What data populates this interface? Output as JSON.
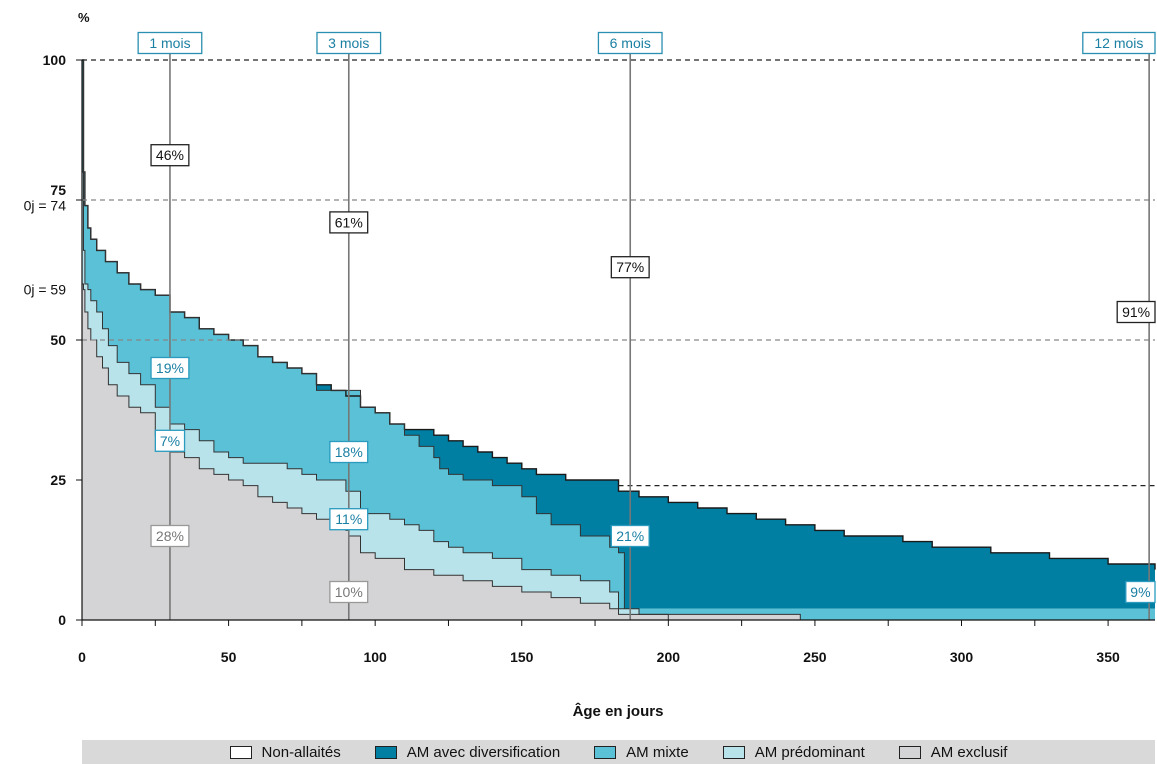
{
  "chart_data": {
    "type": "area",
    "xlabel": "Âge en jours",
    "ylabel": "%",
    "xlim": [
      0,
      366
    ],
    "ylim": [
      0,
      100
    ],
    "x_ticks": [
      "0",
      "50",
      "100",
      "150",
      "200",
      "250",
      "300",
      "350"
    ],
    "y_ticks": [
      "0",
      "25",
      "50",
      "75",
      "100"
    ],
    "reference_lines": [
      {
        "y": 100,
        "style": "dashed",
        "color": "#222222"
      },
      {
        "y": 75,
        "style": "dashed",
        "color": "#888888"
      },
      {
        "y": 50,
        "style": "dashed",
        "color": "#888888"
      },
      {
        "y": 24,
        "x_from": 183,
        "style": "dashed",
        "color": "#222222"
      }
    ],
    "start_labels": [
      {
        "text": "0j = 74",
        "y": 74
      },
      {
        "text": "0j = 59",
        "y": 59
      }
    ],
    "milestones": [
      {
        "label": "1 mois",
        "x": 30
      },
      {
        "label": "3 mois",
        "x": 91
      },
      {
        "label": "6 mois",
        "x": 187
      },
      {
        "label": "12 mois",
        "x": 364
      }
    ],
    "annotations": [
      {
        "text": "46%",
        "x": 30,
        "y": 83,
        "kind": "dark"
      },
      {
        "text": "61%",
        "x": 91,
        "y": 71,
        "kind": "dark"
      },
      {
        "text": "77%",
        "x": 187,
        "y": 63,
        "kind": "dark"
      },
      {
        "text": "91%",
        "x": 364,
        "y": 55,
        "kind": "dark"
      },
      {
        "text": "19%",
        "x": 30,
        "y": 45,
        "kind": "teal"
      },
      {
        "text": "7%",
        "x": 30,
        "y": 32,
        "kind": "teal"
      },
      {
        "text": "28%",
        "x": 30,
        "y": 15,
        "kind": "grey"
      },
      {
        "text": "18%",
        "x": 91,
        "y": 30,
        "kind": "teal"
      },
      {
        "text": "11%",
        "x": 91,
        "y": 18,
        "kind": "teal"
      },
      {
        "text": "10%",
        "x": 91,
        "y": 5,
        "kind": "grey"
      },
      {
        "text": "21%",
        "x": 187,
        "y": 15,
        "kind": "teal"
      },
      {
        "text": "9%",
        "x": 364,
        "y": 5,
        "kind": "teal"
      }
    ],
    "colors": {
      "non_allaites": "#ffffff",
      "diversification": "#007fa3",
      "mixte": "#5ac1d6",
      "predominant": "#b9e3eb",
      "exclusif": "#d4d4d6"
    },
    "legend": [
      {
        "label": "Non-allaités",
        "key": "non_allaites"
      },
      {
        "label": "AM avec diversification",
        "key": "diversification"
      },
      {
        "label": "AM mixte",
        "key": "mixte"
      },
      {
        "label": "AM prédominant",
        "key": "predominant"
      },
      {
        "label": "AM exclusif",
        "key": "exclusif"
      }
    ],
    "series": [
      {
        "key": "total",
        "x": [
          0,
          0.5,
          1,
          2,
          3,
          5,
          8,
          12,
          16,
          20,
          25,
          30,
          35,
          40,
          45,
          50,
          55,
          60,
          65,
          70,
          75,
          80,
          85,
          90,
          95,
          100,
          105,
          110,
          115,
          120,
          125,
          130,
          135,
          140,
          145,
          150,
          155,
          160,
          165,
          170,
          175,
          180,
          183,
          185,
          190,
          200,
          210,
          220,
          230,
          240,
          250,
          260,
          270,
          280,
          290,
          300,
          310,
          320,
          330,
          340,
          350,
          360,
          366
        ],
        "values": [
          100,
          80,
          74,
          70,
          68,
          66,
          64,
          62,
          60,
          59,
          58,
          55,
          54,
          52,
          51,
          50,
          49,
          47,
          46,
          45,
          44,
          42,
          41,
          40,
          38,
          37,
          35,
          34,
          34,
          33,
          32,
          31,
          30,
          29,
          28,
          27,
          26,
          26,
          25,
          25,
          25,
          25,
          23,
          23,
          22,
          21,
          20,
          19,
          18,
          17,
          16,
          15,
          15,
          14,
          13,
          13,
          12,
          12,
          11,
          11,
          10,
          10,
          9
        ]
      },
      {
        "key": "mixte_top",
        "x": [
          0,
          0.5,
          1,
          2,
          3,
          5,
          8,
          12,
          16,
          20,
          25,
          30,
          35,
          40,
          45,
          50,
          55,
          60,
          65,
          70,
          75,
          80,
          85,
          90,
          95,
          100,
          105,
          110,
          115,
          120,
          122,
          125,
          130,
          140,
          150,
          155,
          160,
          170,
          180,
          183,
          185,
          366
        ],
        "values": [
          100,
          80,
          74,
          70,
          68,
          66,
          64,
          62,
          60,
          59,
          58,
          55,
          54,
          52,
          51,
          50,
          49,
          47,
          46,
          45,
          44,
          41,
          41,
          41,
          38,
          37,
          35,
          33,
          31,
          29,
          27,
          26,
          25,
          24,
          22,
          19,
          17,
          15,
          13,
          12,
          2,
          0
        ]
      },
      {
        "key": "predominant_top",
        "x": [
          0,
          0.5,
          1,
          2,
          3,
          5,
          7,
          9,
          12,
          16,
          20,
          25,
          30,
          35,
          40,
          45,
          50,
          55,
          60,
          70,
          75,
          80,
          90,
          95,
          100,
          105,
          110,
          115,
          120,
          125,
          130,
          140,
          150,
          160,
          170,
          180,
          183,
          190,
          200,
          366
        ],
        "values": [
          80,
          66,
          60,
          59,
          57,
          55,
          52,
          49,
          46,
          44,
          42,
          38,
          35,
          34,
          32,
          30,
          29,
          28,
          28,
          27,
          26,
          25,
          23,
          19,
          19,
          18,
          17,
          16,
          14,
          13,
          12,
          11,
          9,
          8,
          7,
          5,
          2,
          1,
          0,
          0
        ]
      },
      {
        "key": "exclusif_top",
        "x": [
          0,
          0.5,
          1,
          2,
          3,
          5,
          7,
          9,
          12,
          16,
          20,
          25,
          30,
          35,
          40,
          45,
          50,
          55,
          60,
          65,
          70,
          75,
          80,
          85,
          90,
          91,
          95,
          100,
          110,
          120,
          130,
          140,
          150,
          160,
          170,
          180,
          183,
          190,
          200,
          210,
          240,
          245,
          366
        ],
        "values": [
          60,
          59,
          55,
          52,
          50,
          47,
          45,
          42,
          40,
          38,
          37,
          33,
          30,
          29,
          27,
          26,
          25,
          24,
          22,
          21,
          20,
          19,
          18,
          17,
          16,
          15,
          12,
          11,
          9,
          8,
          7,
          6,
          5,
          4,
          3,
          2,
          1,
          1,
          1,
          1,
          1,
          0,
          0
        ]
      }
    ]
  }
}
